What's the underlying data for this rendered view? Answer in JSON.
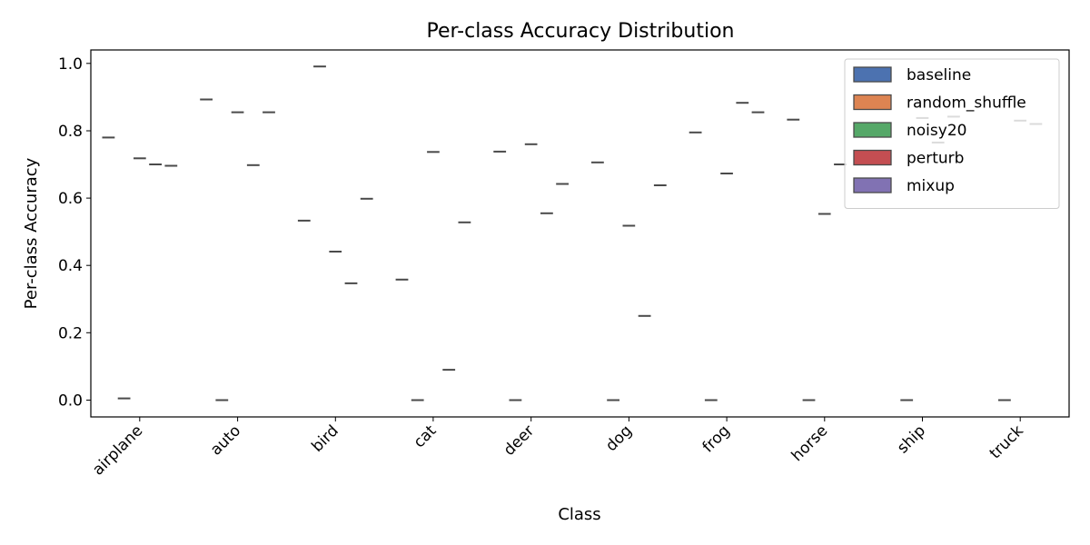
{
  "chart_data": {
    "type": "box",
    "title": "Per-class Accuracy Distribution",
    "xlabel": "Class",
    "ylabel": "Per-class Accuracy",
    "categories": [
      "airplane",
      "auto",
      "bird",
      "cat",
      "deer",
      "dog",
      "frog",
      "horse",
      "ship",
      "truck"
    ],
    "ylim": [
      -0.05,
      1.04
    ],
    "yticks": [
      0.0,
      0.2,
      0.4,
      0.6,
      0.8,
      1.0
    ],
    "ytick_labels": [
      "0.0",
      "0.2",
      "0.4",
      "0.6",
      "0.8",
      "1.0"
    ],
    "grid": false,
    "legend_position": "top-right",
    "series": [
      {
        "name": "baseline",
        "color": "#4c72b0",
        "values": [
          0.78,
          0.893,
          0.533,
          0.358,
          0.738,
          0.706,
          0.795,
          0.833,
          null,
          null
        ]
      },
      {
        "name": "random_shuffle",
        "color": "#dd8452",
        "values": [
          0.005,
          0.0,
          0.991,
          0.0,
          0.0,
          0.0,
          0.0,
          0.0,
          0.0,
          0.0
        ]
      },
      {
        "name": "noisy20",
        "color": "#55a868",
        "values": [
          0.718,
          0.855,
          0.441,
          0.737,
          0.76,
          0.518,
          0.673,
          0.553,
          0.838,
          0.83
        ]
      },
      {
        "name": "perturb",
        "color": "#c44e52",
        "values": [
          0.7,
          0.698,
          0.347,
          0.09,
          0.555,
          0.25,
          0.883,
          0.7,
          0.765,
          0.82
        ]
      },
      {
        "name": "mixup",
        "color": "#8172b3",
        "values": [
          0.696,
          0.855,
          0.598,
          0.528,
          0.642,
          0.638,
          0.855,
          null,
          0.842,
          null
        ]
      }
    ]
  }
}
